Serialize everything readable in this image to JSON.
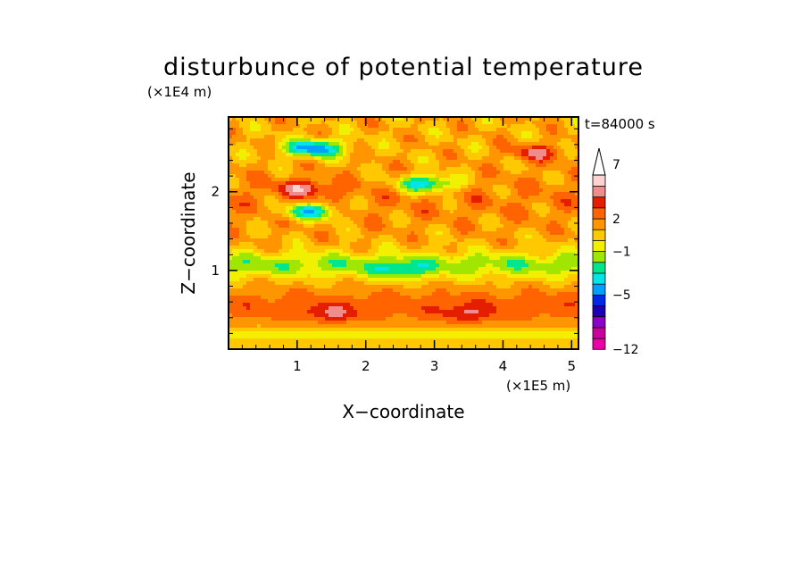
{
  "chart_data": {
    "type": "heatmap",
    "title": "disturbunce of potential temperature",
    "xlabel": "X−coordinate",
    "ylabel": "Z−coordinate",
    "x_unit": "(×1E5 m)",
    "y_unit": "(×1E4 m)",
    "time_label": "t=84000 s",
    "xlim": [
      0,
      5.1
    ],
    "ylim": [
      0,
      2.95
    ],
    "x_ticks": [
      1,
      2,
      3,
      4,
      5
    ],
    "x_tick_labels": [
      "1",
      "2",
      "3",
      "4",
      "5"
    ],
    "y_ticks": [
      1,
      2
    ],
    "y_tick_labels": [
      "1",
      "2"
    ],
    "colorbar": {
      "levels": [
        -12,
        -10,
        -8,
        -7,
        -6,
        -5,
        -4,
        -3,
        -2,
        -1,
        0,
        1,
        2,
        3,
        4,
        5,
        6,
        7,
        8,
        9
      ],
      "colors": [
        "#e800a8",
        "#c8009c",
        "#8c00c8",
        "#1e00b4",
        "#0028e6",
        "#00a0ff",
        "#00e6e6",
        "#00e68c",
        "#a0e600",
        "#f0f000",
        "#ffc800",
        "#ff9600",
        "#ff6400",
        "#e61e00",
        "#f08c8c",
        "#ffd2d2"
      ],
      "labels": [
        {
          "value": -12,
          "text": "−12"
        },
        {
          "value": -5,
          "text": "−5"
        },
        {
          "value": -1,
          "text": "−1"
        },
        {
          "value": 2,
          "text": "2"
        },
        {
          "value": 7,
          "text": "7"
        }
      ],
      "extend": "max"
    },
    "field_features": [
      {
        "x": 1.25,
        "z": 2.55,
        "value": -5.5
      },
      {
        "x": 2.9,
        "z": 2.1,
        "value": -5
      },
      {
        "x": 1.1,
        "z": 2.05,
        "value": 4
      },
      {
        "x": 1.2,
        "z": 1.75,
        "value": -4.5
      },
      {
        "x": 2.5,
        "z": 1.0,
        "value": -1.5
      },
      {
        "x": 1.5,
        "z": 0.45,
        "value": 3
      },
      {
        "x": 3.5,
        "z": 0.45,
        "value": 3
      },
      {
        "x": 4.5,
        "z": 2.5,
        "value": 4
      }
    ]
  },
  "labels": {
    "title": "disturbunce of potential temperature",
    "y_unit": "(×1E4 m)",
    "x_unit": "(×1E5 m)",
    "time": "t=84000 s",
    "xlabel": "X−coordinate",
    "ylabel": "Z−coordinate"
  }
}
